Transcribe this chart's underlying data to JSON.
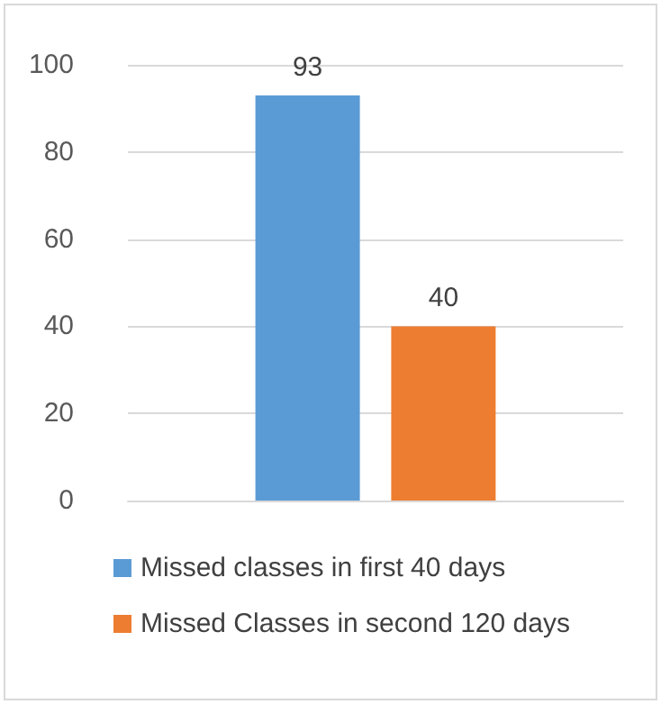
{
  "chart_data": {
    "type": "bar",
    "categories": [
      null
    ],
    "series": [
      {
        "name": "Missed classes in first 40 days",
        "color": "#5b9bd5",
        "values": [
          93
        ]
      },
      {
        "name": "Missed Classes in second 120 days",
        "color": "#ed7d31",
        "values": [
          40
        ]
      }
    ],
    "ylim": [
      0,
      100
    ],
    "yticks": [
      0,
      20,
      40,
      60,
      80,
      100
    ],
    "grid": "y",
    "legend": "bottom",
    "data_labels": true
  }
}
